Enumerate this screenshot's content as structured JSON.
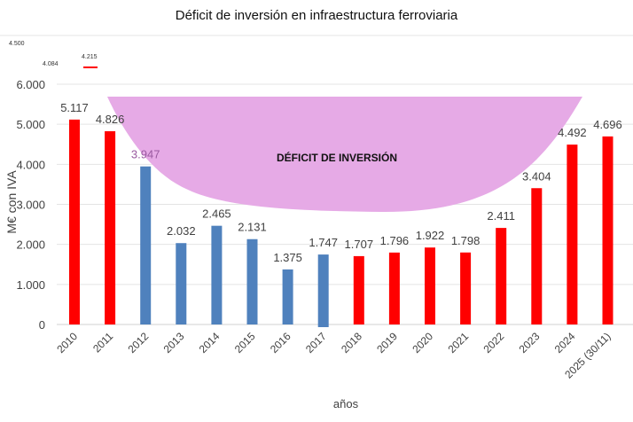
{
  "chart_data": {
    "type": "bar",
    "title": "Déficit de inversión en infraestructura ferroviaria",
    "xlabel": "años",
    "ylabel": "M€ con IVA",
    "ylim": [
      0,
      6000
    ],
    "yticks": [
      "0",
      "1.000",
      "2.000",
      "3.000",
      "4.000",
      "5.000",
      "6.000"
    ],
    "categories": [
      "2010",
      "2011",
      "2012",
      "2013",
      "2014",
      "2015",
      "2016",
      "2017",
      "2018",
      "2019",
      "2020",
      "2021",
      "2022",
      "2023",
      "2024",
      "2025 (30/11)"
    ],
    "values": [
      5117,
      4826,
      3947,
      2032,
      2465,
      2131,
      1375,
      1747,
      1707,
      1796,
      1922,
      1798,
      2411,
      3404,
      4492,
      4696
    ],
    "value_labels": [
      "5.117",
      "4.826",
      "3.947",
      "2.032",
      "2.465",
      "2.131",
      "1.375",
      "1.747",
      "1.707",
      "1.796",
      "1.922",
      "1.798",
      "2.411",
      "3.404",
      "4.492",
      "4.696"
    ],
    "bar_colors": [
      "#ff0000",
      "#ff0000",
      "#4f81bd",
      "#4f81bd",
      "#4f81bd",
      "#4f81bd",
      "#4f81bd",
      "#4f81bd",
      "#ff0000",
      "#ff0000",
      "#ff0000",
      "#ff0000",
      "#ff0000",
      "#ff0000",
      "#ff0000",
      "#ff0000"
    ],
    "annotation": "DÉFICIT DE INVERSIÓN",
    "annotation_color": "#e6aae6",
    "grid": true
  },
  "stray_labels": {
    "left": "4.500",
    "cut": "4.084",
    "right": "4.215"
  }
}
